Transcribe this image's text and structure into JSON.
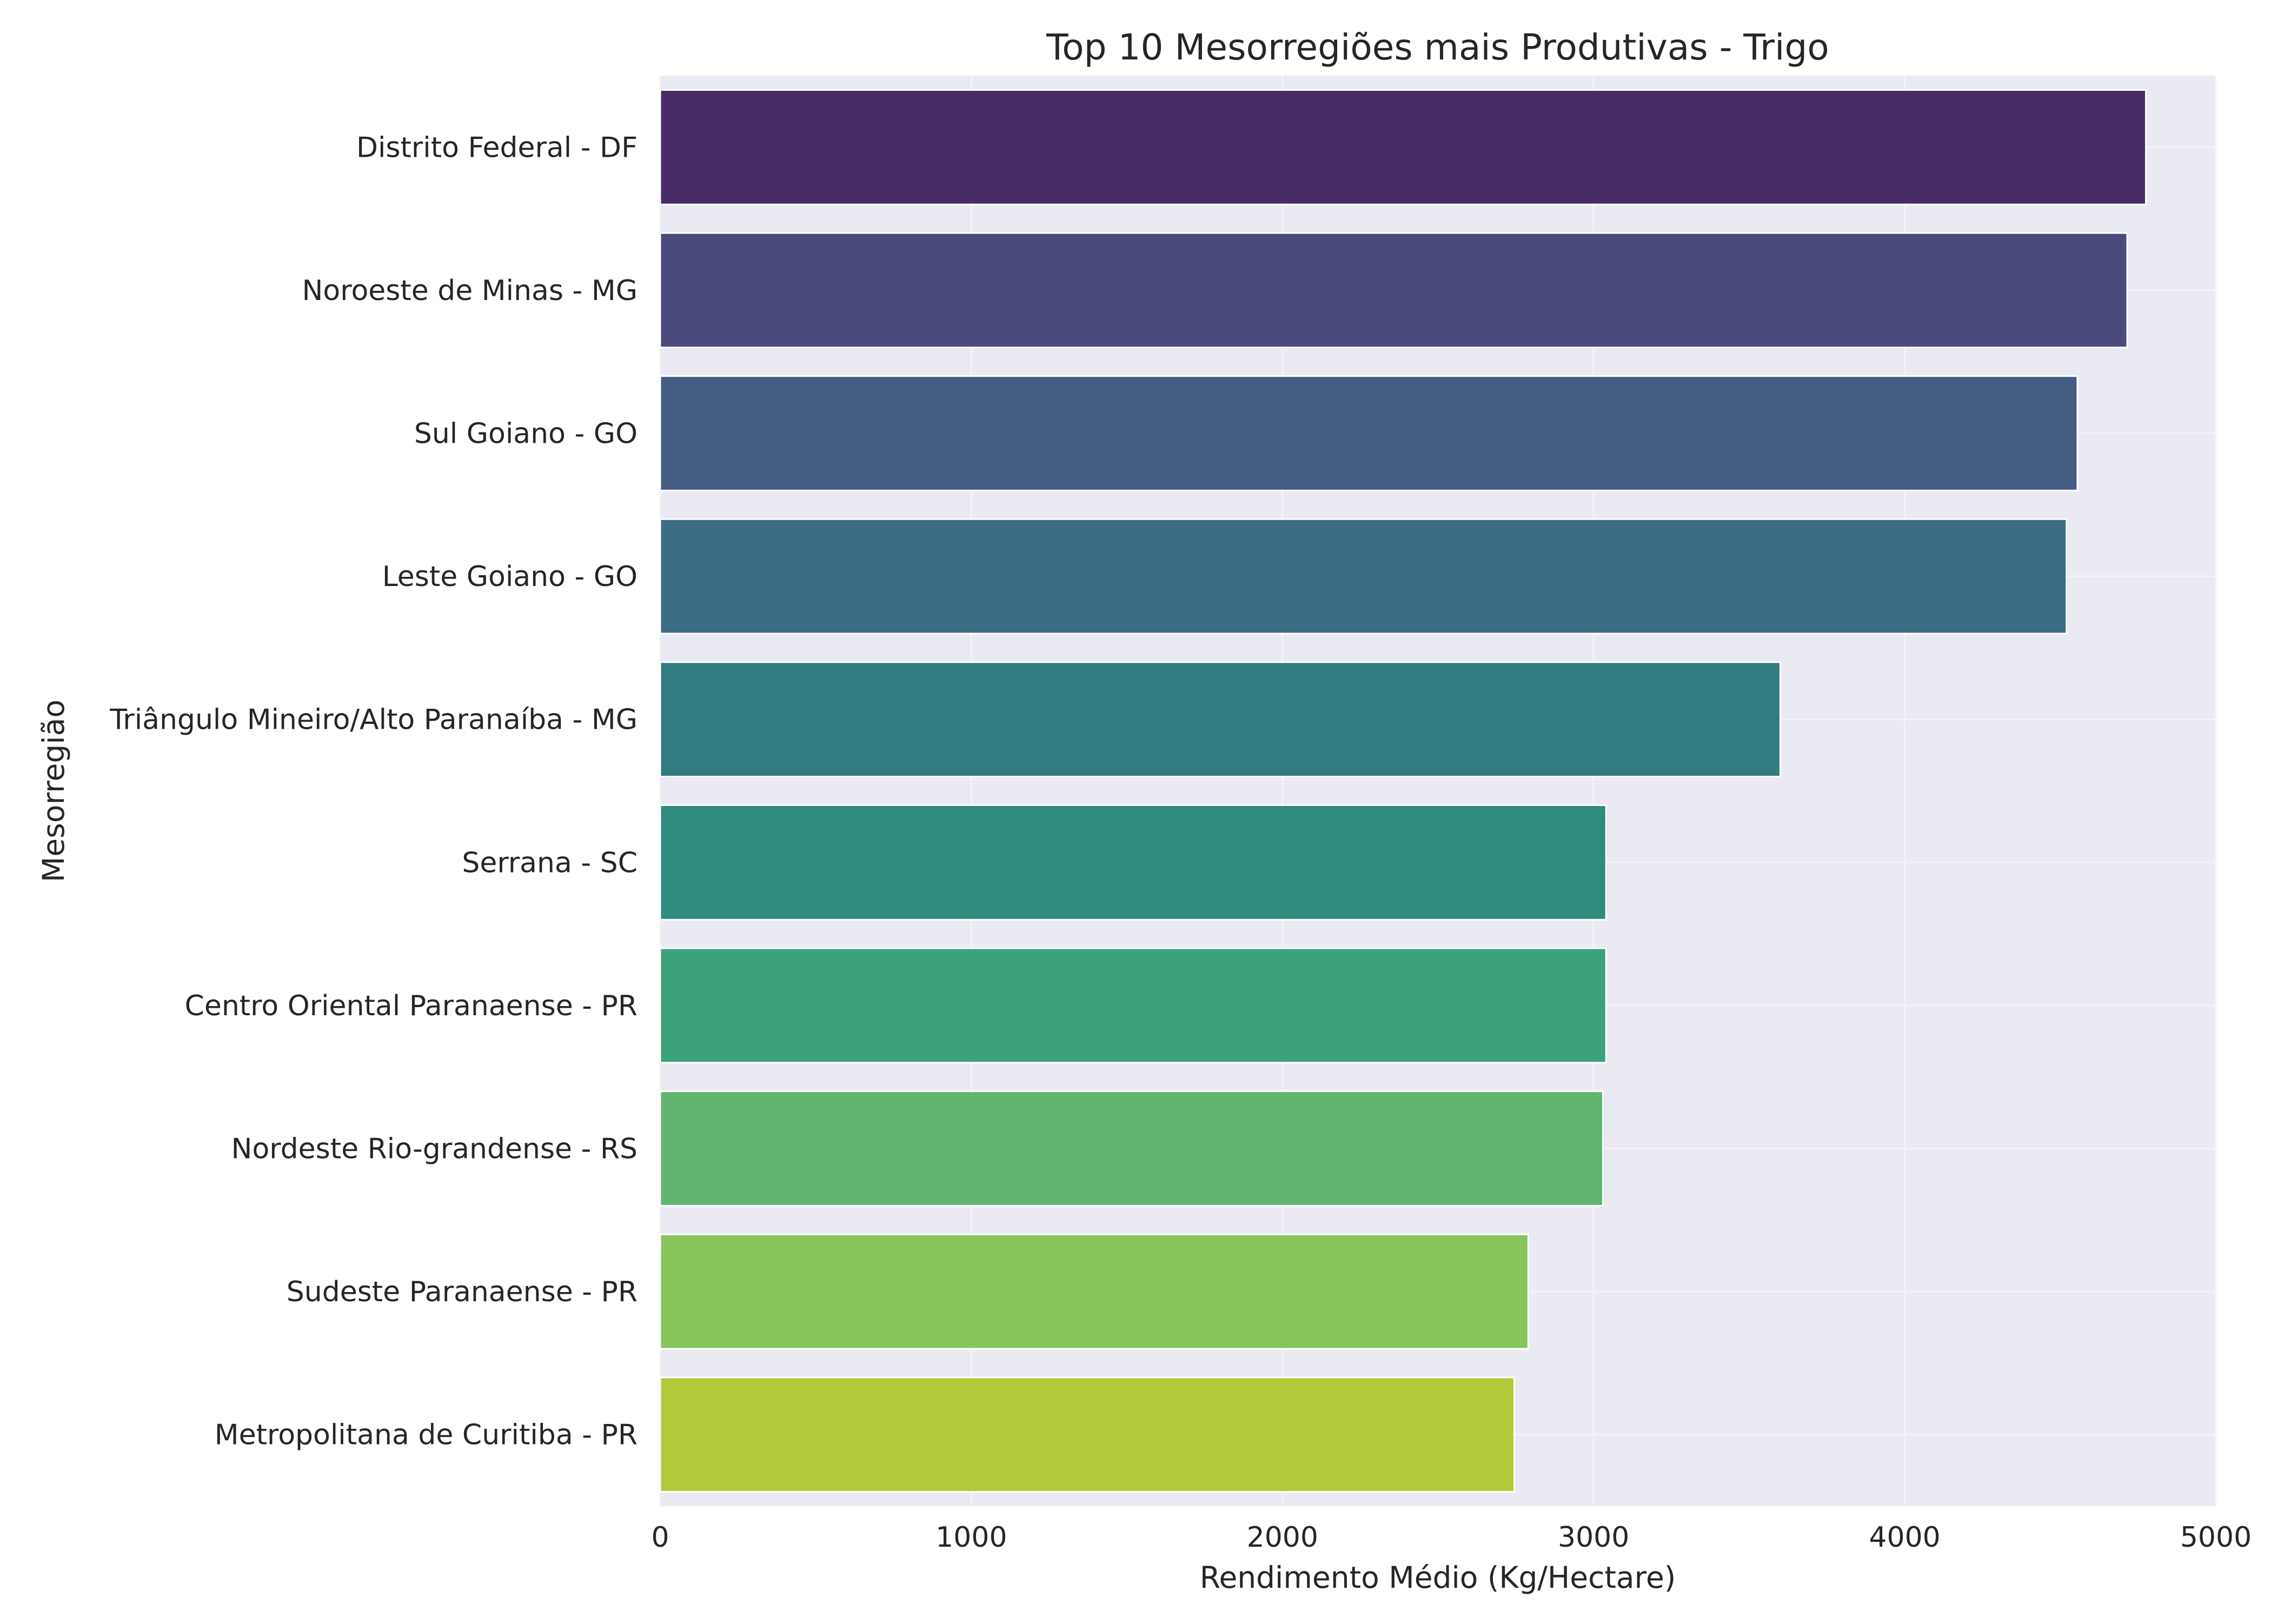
{
  "chart_data": {
    "type": "bar",
    "orientation": "horizontal",
    "title": "Top 10 Mesorregiões mais Produtivas - Trigo",
    "xlabel": "Rendimento Médio (Kg/Hectare)",
    "ylabel": "Mesorregião",
    "xlim": [
      0,
      5000
    ],
    "xticks": [
      0,
      1000,
      2000,
      3000,
      4000,
      5000
    ],
    "grid": true,
    "legend": "none",
    "background_color": "#eaeaf2",
    "grid_color": "#f4f4f8",
    "categories": [
      "Distrito Federal - DF",
      "Noroeste de Minas - MG",
      "Sul Goiano - GO",
      "Leste Goiano - GO",
      "Triângulo Mineiro/Alto Paranaíba - MG",
      "Serrana - SC",
      "Centro Oriental Paranaense - PR",
      "Nordeste Rio-grandense - RS",
      "Sudeste Paranaense - PR",
      "Metropolitana de Curitiba - PR"
    ],
    "values": [
      4775,
      4715,
      4555,
      4520,
      3600,
      3040,
      3040,
      3030,
      2790,
      2745
    ],
    "colors": [
      "#482a66",
      "#4a4a7c",
      "#455d83",
      "#3b6d84",
      "#317c80",
      "#2e8c7e",
      "#3ba17a",
      "#60b56f",
      "#88c45c",
      "#b2c93a"
    ]
  }
}
